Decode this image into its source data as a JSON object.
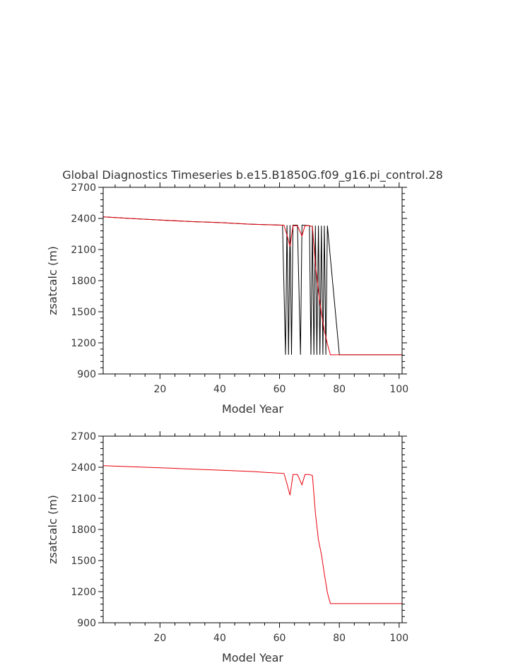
{
  "page_title": "Global Diagnostics Timeseries b.e15.B1850G.f09_g16.pi_control.28",
  "chart_data": [
    {
      "type": "line",
      "panel": "top",
      "title": "Global Diagnostics Timeseries b.e15.B1850G.f09_g16.pi_control.28",
      "xlabel": "Model Year",
      "ylabel": "zsatcalc (m)",
      "xlim": [
        1,
        101
      ],
      "ylim": [
        900,
        2700
      ],
      "xticks": [
        20,
        40,
        60,
        80,
        100
      ],
      "yticks": [
        900,
        1200,
        1500,
        1800,
        2100,
        2400,
        2700
      ],
      "grid": false,
      "series": [
        {
          "color": "#000000",
          "x": [
            1,
            10,
            20,
            30,
            40,
            50,
            61,
            62,
            62.5,
            63,
            63.5,
            64,
            64.5,
            66,
            67,
            67.5,
            68,
            70,
            70.5,
            71,
            71.5,
            72,
            72.5,
            73,
            73.5,
            74,
            74.5,
            75,
            75.5,
            76,
            80,
            90,
            101
          ],
          "y": [
            2415,
            2400,
            2385,
            2370,
            2360,
            2345,
            2335,
            1085,
            2335,
            1085,
            2335,
            1085,
            2335,
            2335,
            1085,
            2335,
            2335,
            2330,
            1085,
            2330,
            1085,
            2330,
            1085,
            2330,
            1085,
            2330,
            1085,
            2330,
            1085,
            2330,
            1085,
            1085,
            1085
          ]
        },
        {
          "color": "#e8000b",
          "x": [
            1,
            10,
            20,
            30,
            40,
            50,
            60,
            61.5,
            62.5,
            63.5,
            64.5,
            66,
            67.5,
            68.5,
            70,
            71,
            72,
            73,
            74,
            75,
            76,
            77,
            80,
            90,
            101
          ],
          "y": [
            2415,
            2400,
            2385,
            2370,
            2360,
            2345,
            2335,
            2335,
            2240,
            2130,
            2330,
            2330,
            2230,
            2330,
            2330,
            2320,
            1960,
            1700,
            1480,
            1320,
            1190,
            1085,
            1085,
            1085,
            1085
          ]
        }
      ]
    },
    {
      "type": "line",
      "panel": "bottom",
      "title": "",
      "xlabel": "Model Year",
      "ylabel": "zsatcalc (m)",
      "xlim": [
        1,
        101
      ],
      "ylim": [
        900,
        2700
      ],
      "xticks": [
        20,
        40,
        60,
        80,
        100
      ],
      "yticks": [
        900,
        1200,
        1500,
        1800,
        2100,
        2400,
        2700
      ],
      "grid": false,
      "series": [
        {
          "color": "#e8000b",
          "x": [
            1,
            10,
            20,
            30,
            40,
            50,
            61.5,
            62.5,
            63.5,
            64.5,
            66,
            67.5,
            68.5,
            70,
            71,
            72,
            73,
            74,
            75,
            76,
            77,
            80,
            90,
            101
          ],
          "y": [
            2415,
            2405,
            2395,
            2383,
            2372,
            2360,
            2340,
            2240,
            2130,
            2330,
            2330,
            2230,
            2330,
            2330,
            2320,
            1960,
            1700,
            1560,
            1370,
            1190,
            1085,
            1085,
            1085,
            1085
          ]
        }
      ]
    }
  ]
}
